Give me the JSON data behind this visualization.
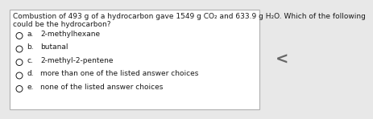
{
  "question_line1": "Combustion of 493 g of a hydrocarbon gave 1549 g CO₂ and 633.9 g H₂O. Which of the following",
  "question_line2": "could be the hydrocarbon?",
  "choices": [
    [
      "a.",
      "2-methylhexane"
    ],
    [
      "b.",
      "butanal"
    ],
    [
      "c.",
      "2-methyl-2-pentene"
    ],
    [
      "d.",
      "more than one of the listed answer choices"
    ],
    [
      "e.",
      "none of the listed answer choices"
    ]
  ],
  "bg_color": "#e8e8e8",
  "box_color": "#ffffff",
  "border_color": "#b0b0b0",
  "text_color": "#1a1a1a",
  "question_fontsize": 6.5,
  "choice_fontsize": 6.5,
  "arrow_color": "#666666",
  "arrow_fontsize": 14
}
